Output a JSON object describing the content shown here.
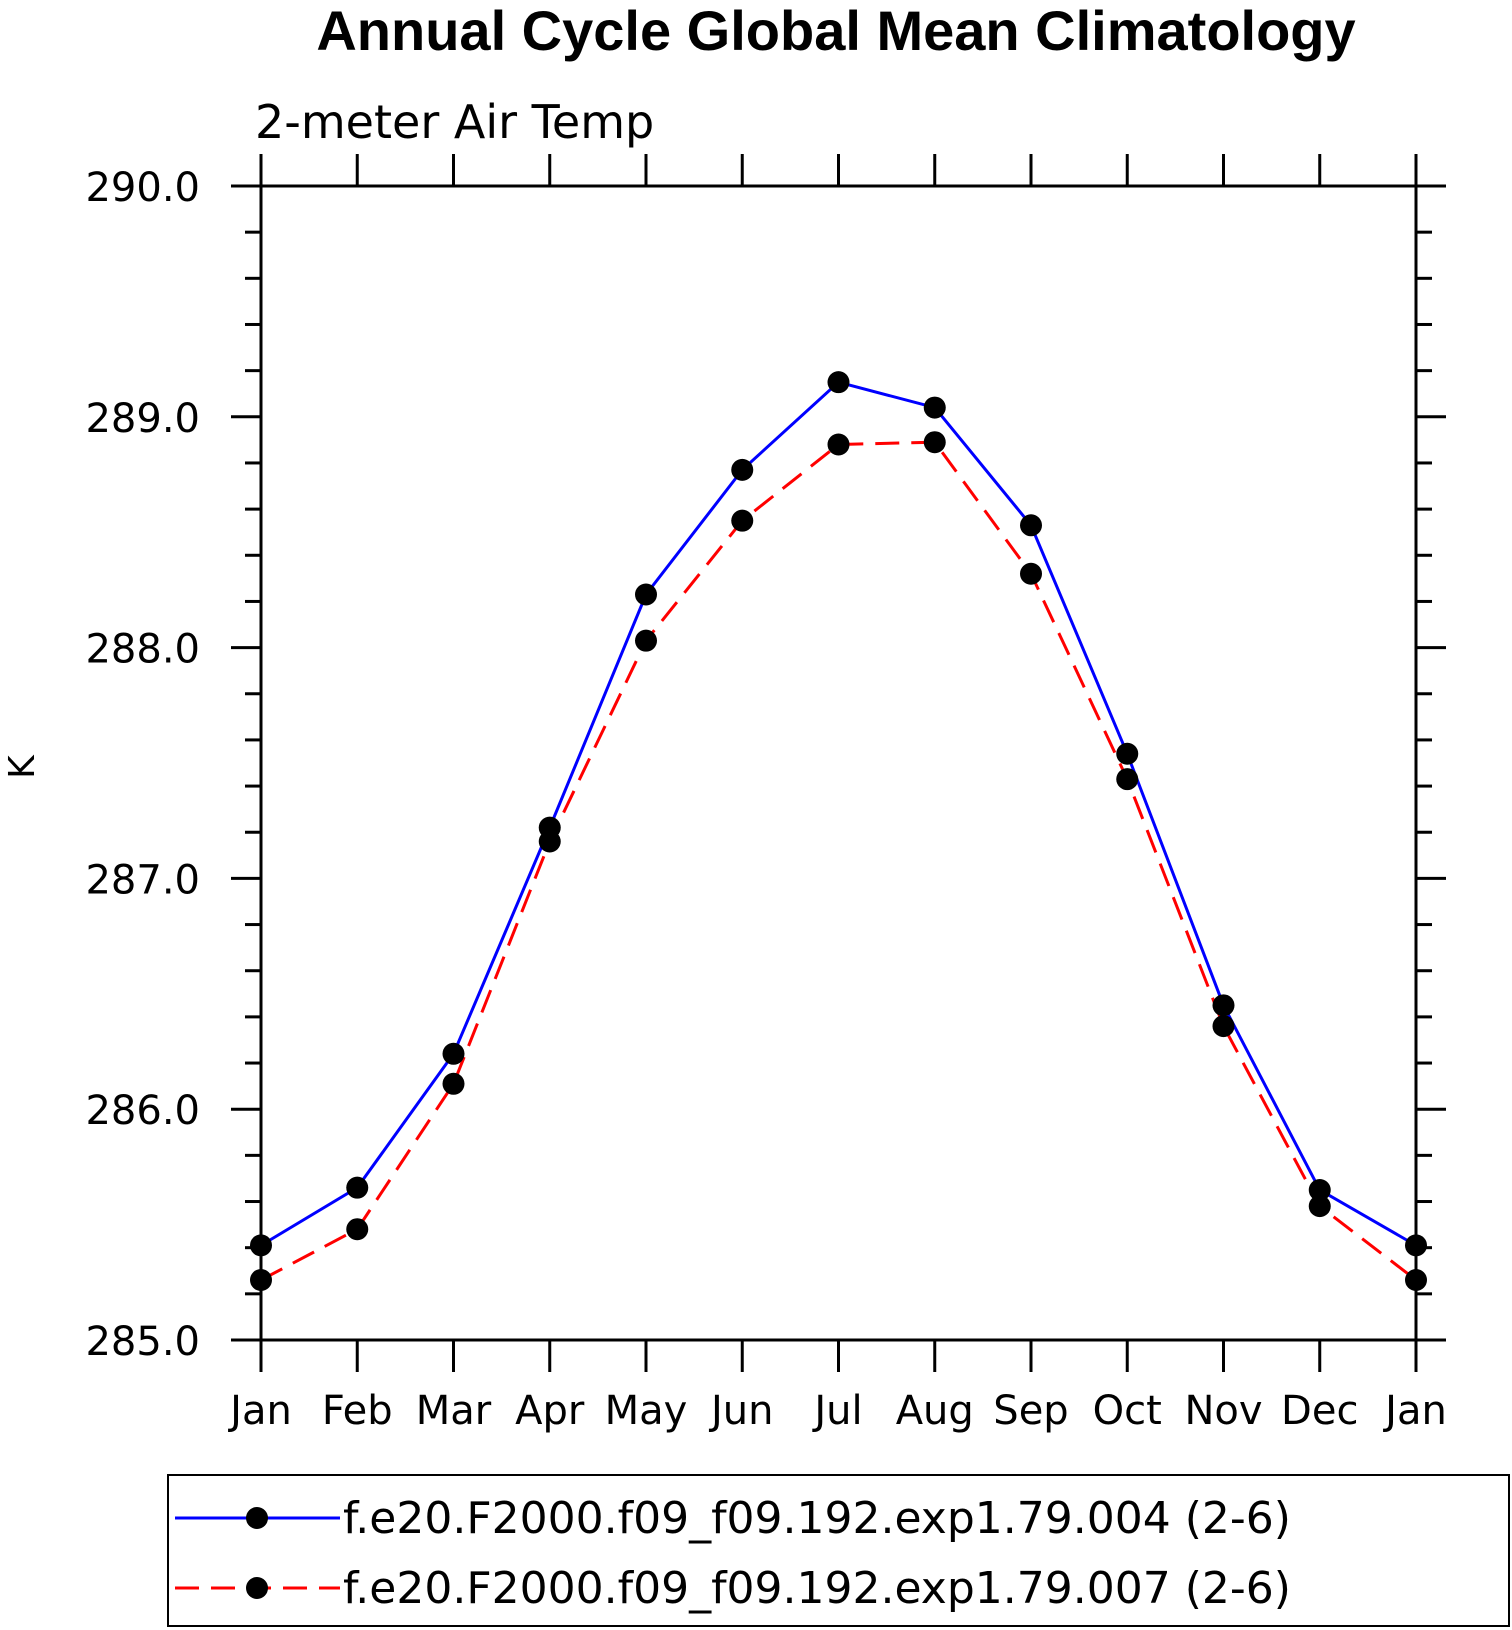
{
  "chart_data": {
    "type": "line",
    "title": "Annual Cycle Global Mean Climatology",
    "subtitle": "2-meter Air Temp",
    "ylabel": "K",
    "xlabel": "",
    "categories": [
      "Jan",
      "Feb",
      "Mar",
      "Apr",
      "May",
      "Jun",
      "Jul",
      "Aug",
      "Sep",
      "Oct",
      "Nov",
      "Dec",
      "Jan"
    ],
    "ylim": [
      285.0,
      290.0
    ],
    "yticks": [
      "285.0",
      "286.0",
      "287.0",
      "288.0",
      "289.0",
      "290.0"
    ],
    "grid": false,
    "legend_position": "bottom",
    "series": [
      {
        "name": "f.e20.F2000.f09_f09.192.exp1.79.004 (2-6)",
        "color": "#0000ff",
        "line_style": "solid",
        "marker": "filled-circle",
        "values": [
          285.41,
          285.66,
          286.24,
          287.22,
          288.23,
          288.77,
          289.15,
          289.04,
          288.53,
          287.54,
          286.45,
          285.65,
          285.41
        ]
      },
      {
        "name": "f.e20.F2000.f09_f09.192.exp1.79.007 (2-6)",
        "color": "#ff0000",
        "line_style": "dashed",
        "marker": "filled-circle",
        "values": [
          285.26,
          285.48,
          286.11,
          287.16,
          288.03,
          288.55,
          288.88,
          288.89,
          288.32,
          287.43,
          286.36,
          285.58,
          285.26
        ]
      }
    ]
  }
}
